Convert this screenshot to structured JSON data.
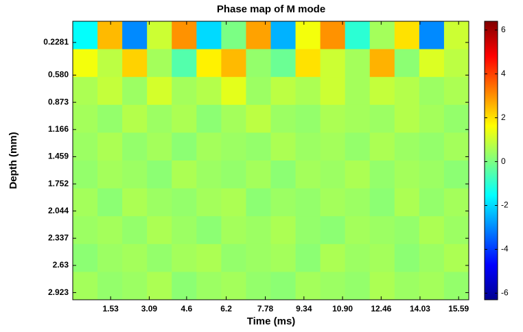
{
  "chart_data": {
    "type": "heatmap",
    "title": "Phase map of M mode",
    "xlabel": "Time (ms)",
    "ylabel": "Depth (mm)",
    "xlim": [
      0,
      16.0
    ],
    "ylim": [
      0,
      3.0
    ],
    "y_inverted": true,
    "xticks": [
      1.53,
      3.09,
      4.6,
      6.2,
      7.78,
      9.34,
      {
        "value": 10.9,
        "label": "10.90"
      },
      12.46,
      14.03,
      15.59
    ],
    "yticks": [
      0.2281,
      {
        "value": 0.58,
        "label": "0.580"
      },
      0.873,
      1.166,
      1.459,
      1.752,
      2.044,
      2.337,
      2.63,
      2.923
    ],
    "colormap": "jet",
    "clim": [
      -6.3,
      6.4
    ],
    "cticks": [
      -6,
      -4,
      -2,
      0,
      2,
      4,
      6
    ],
    "values": [
      [
        -1.5,
        2.5,
        -3,
        1,
        3,
        -2,
        0,
        2.8,
        -2.5,
        1.5,
        3,
        -1,
        0.5,
        2,
        -3,
        1
      ],
      [
        1.5,
        0.8,
        2.2,
        0.5,
        -0.5,
        1.8,
        2.5,
        0.3,
        -0.2,
        2,
        1,
        0.5,
        2.6,
        0.2,
        1.2,
        0.8
      ],
      [
        0.6,
        0.9,
        0.4,
        1.1,
        0.5,
        0.7,
        1.3,
        0.4,
        0.8,
        0.6,
        1,
        0.5,
        0.9,
        0.7,
        0.4,
        0.6
      ],
      [
        0.5,
        0.3,
        0.7,
        0.4,
        0.6,
        0.2,
        0.5,
        0.8,
        0.4,
        0.3,
        0.6,
        0.5,
        0.4,
        0.7,
        0.5,
        0.3
      ],
      [
        0.4,
        0.6,
        0.3,
        0.5,
        0.2,
        0.5,
        0.4,
        0.3,
        0.6,
        0.4,
        0.5,
        0.3,
        0.6,
        0.4,
        0.3,
        0.5
      ],
      [
        0.3,
        0.5,
        0.4,
        0.2,
        0.6,
        0.4,
        0.3,
        0.5,
        0.2,
        0.5,
        0.4,
        0.6,
        0.3,
        0.5,
        0.4,
        0.2
      ],
      [
        0.5,
        0.2,
        0.6,
        0.4,
        0.3,
        0.5,
        0.6,
        0.2,
        0.4,
        0.3,
        0.5,
        0.4,
        0.2,
        0.6,
        0.3,
        0.5
      ],
      [
        0.4,
        0.5,
        0.3,
        0.6,
        0.4,
        0.2,
        0.5,
        0.4,
        0.6,
        0.3,
        0.2,
        0.5,
        0.4,
        0.3,
        0.6,
        0.4
      ],
      [
        0.2,
        0.4,
        0.5,
        0.3,
        0.5,
        0.6,
        0.3,
        0.4,
        0.5,
        0.2,
        0.6,
        0.4,
        0.5,
        0.2,
        0.4,
        0.6
      ],
      [
        0.5,
        0.3,
        0.4,
        0.6,
        0.2,
        0.4,
        0.5,
        0.3,
        0.2,
        0.5,
        0.4,
        0.3,
        0.6,
        0.4,
        0.5,
        0.3
      ]
    ]
  }
}
